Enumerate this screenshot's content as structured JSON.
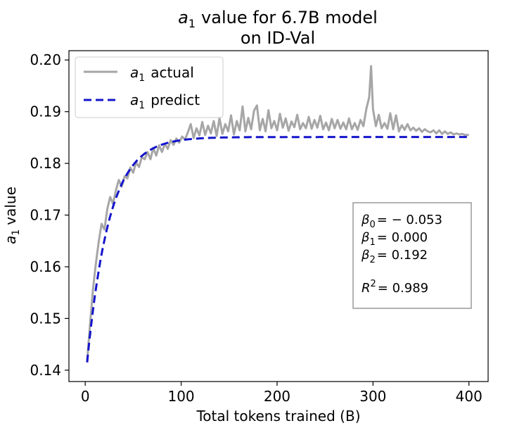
{
  "chart_data": {
    "type": "line",
    "title_line1": "value for 6.7B model",
    "title_symbol": "a",
    "title_sub": "1",
    "title_line2": "on ID-Val",
    "xlabel": "Total tokens trained (B)",
    "ylabel_symbol": "a",
    "ylabel_sub": "1",
    "ylabel_text": "value",
    "xlim": [
      -17,
      420
    ],
    "ylim": [
      0.1378,
      0.2018
    ],
    "xticks": [
      0,
      100,
      200,
      300,
      400
    ],
    "yticks": [
      0.14,
      0.15,
      0.16,
      0.17,
      0.18,
      0.19,
      0.2
    ],
    "xtick_labels": [
      "0",
      "100",
      "200",
      "300",
      "400"
    ],
    "ytick_labels": [
      "0.14",
      "0.15",
      "0.16",
      "0.17",
      "0.18",
      "0.19",
      "0.20"
    ],
    "series": [
      {
        "name": "actual",
        "color": "#a6a6a6",
        "style": "solid",
        "x": [
          2,
          5,
          8,
          11,
          14,
          17,
          20,
          23,
          26,
          29,
          32,
          35,
          38,
          41,
          44,
          47,
          50,
          53,
          56,
          59,
          62,
          65,
          68,
          71,
          74,
          77,
          80,
          83,
          86,
          89,
          92,
          95,
          98,
          101,
          104,
          107,
          110,
          113,
          116,
          119,
          122,
          125,
          128,
          131,
          134,
          137,
          140,
          143,
          146,
          149,
          152,
          155,
          158,
          161,
          164,
          167,
          170,
          173,
          176,
          179,
          182,
          185,
          188,
          191,
          194,
          197,
          200,
          203,
          206,
          209,
          212,
          215,
          218,
          221,
          224,
          227,
          230,
          233,
          236,
          239,
          242,
          245,
          248,
          251,
          254,
          257,
          260,
          263,
          266,
          269,
          272,
          275,
          278,
          281,
          284,
          287,
          290,
          293,
          296,
          298,
          300,
          303,
          306,
          309,
          312,
          315,
          318,
          321,
          324,
          327,
          330,
          333,
          336,
          339,
          342,
          345,
          348,
          351,
          354,
          357,
          360,
          363,
          366,
          369,
          372,
          375,
          378,
          381,
          384,
          387,
          390,
          393,
          396,
          400
        ],
        "values": [
          0.1418,
          0.1488,
          0.1555,
          0.1605,
          0.1648,
          0.1683,
          0.1672,
          0.1712,
          0.1735,
          0.1722,
          0.1748,
          0.1768,
          0.1755,
          0.1775,
          0.1771,
          0.1792,
          0.1782,
          0.1802,
          0.1793,
          0.1812,
          0.1808,
          0.1822,
          0.1808,
          0.183,
          0.1815,
          0.1835,
          0.1822,
          0.1838,
          0.1828,
          0.1845,
          0.1836,
          0.1848,
          0.184,
          0.1852,
          0.1846,
          0.186,
          0.1876,
          0.1849,
          0.1868,
          0.1854,
          0.188,
          0.1855,
          0.1873,
          0.1858,
          0.1882,
          0.1853,
          0.1888,
          0.1857,
          0.1876,
          0.1862,
          0.1893,
          0.1856,
          0.1882,
          0.1864,
          0.191,
          0.1862,
          0.1888,
          0.1866,
          0.1902,
          0.1912,
          0.1864,
          0.1886,
          0.1862,
          0.1903,
          0.1868,
          0.1882,
          0.1864,
          0.1896,
          0.1869,
          0.1887,
          0.1863,
          0.1881,
          0.187,
          0.1894,
          0.1866,
          0.1878,
          0.1868,
          0.189,
          0.1867,
          0.1884,
          0.1869,
          0.1892,
          0.1866,
          0.1879,
          0.1864,
          0.1886,
          0.1868,
          0.1884,
          0.1867,
          0.1879,
          0.1866,
          0.1887,
          0.1866,
          0.1878,
          0.1865,
          0.1884,
          0.1872,
          0.1905,
          0.1928,
          0.1988,
          0.1905,
          0.1872,
          0.1894,
          0.1868,
          0.1878,
          0.1867,
          0.1897,
          0.1866,
          0.1893,
          0.1862,
          0.1874,
          0.1865,
          0.1876,
          0.1864,
          0.1869,
          0.1863,
          0.1868,
          0.1861,
          0.1866,
          0.1862,
          0.186,
          0.1864,
          0.1858,
          0.1864,
          0.1857,
          0.1862,
          0.1857,
          0.186,
          0.1856,
          0.1858,
          0.1856,
          0.1857,
          0.1855,
          0.1855
        ]
      },
      {
        "name": "predict",
        "color": "#1515cc",
        "style": "dashed"
      }
    ],
    "legend": {
      "placement": "top-left",
      "entries": [
        {
          "symbol": "a",
          "sub": "1",
          "text": "actual"
        },
        {
          "symbol": "a",
          "sub": "1",
          "text": "predict"
        }
      ]
    },
    "fit": {
      "beta0": -0.053,
      "beta1": 0.0,
      "beta2": 0.192,
      "plateau": 0.1851,
      "start_value": 0.1415,
      "x_start": 2,
      "x_end": 400,
      "tau": 23
    },
    "annotation": {
      "placement": "right",
      "b0_sub": "0",
      "b0_val": "= − 0.053",
      "b1_sub": "1",
      "b1_val": "= 0.000",
      "b2_sub": "2",
      "b2_val": "= 0.192",
      "r2_sup": "2",
      "r2_val": "= 0.989"
    }
  }
}
